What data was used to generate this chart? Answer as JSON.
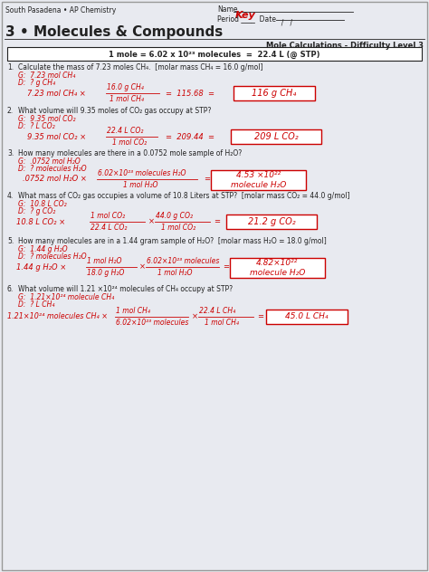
{
  "bg_color": "#e8eaf0",
  "white": "#ffffff",
  "red": "#cc0000",
  "black": "#222222",
  "header_school": "South Pasadena • AP Chemistry",
  "header_name_label": "Name",
  "header_name_value": "Key",
  "header_period_date": "Period ____  Date",
  "header_date_val": "  /   /",
  "chapter_title": "3 • Molecules & Compounds",
  "subtitle": "Mole Calculations - Difficulty Level 3",
  "formula_box": "1 mole = 6.02 x 10²³ molecules  =  22.4 L (@ STP)",
  "q1_text": "Calculate the mass of 7.23 moles CH₄.  [molar mass CH₄ = 16.0 g/mol]",
  "q1_given": "G:  7.23 mol CH₄",
  "q1_det": "D:  ? g CH₄",
  "q1_start": "7.23 mol CH₄ ×",
  "q1_fn": "16.0 g CH₄",
  "q1_fd": "1 mol CH₄",
  "q1_mid": "=  115.68  =",
  "q1_ans": "116 g CH₄",
  "q2_text": "What volume will 9.35 moles of CO₂ gas occupy at STP?",
  "q2_given": "G:  9.35 mol CO₂",
  "q2_det": "D:  ? L CO₂",
  "q2_start": "9.35 mol CO₂ ×",
  "q2_fn": "22.4 L CO₂",
  "q2_fd": "1 mol CO₂",
  "q2_mid": "=  209.44  =",
  "q2_ans": "209 L CO₂",
  "q3_text": "How many molecules are there in a 0.0752 mole sample of H₂O?",
  "q3_given": "G:  .0752 mol H₂O",
  "q3_det": "D:  ? molecules H₂O",
  "q3_start": ".0752 mol H₂O ×",
  "q3_fn": "6.02×10²³ molecules H₂O",
  "q3_fd": "1 mol H₂O",
  "q3_mid": "=",
  "q3_ans": "4.53 ×10²²\nmolecule H₂O",
  "q4_text": "What mass of CO₂ gas occupies a volume of 10.8 Liters at STP?  [molar mass CO₂ = 44.0 g/mol]",
  "q4_given": "G:  10.8 L CO₂",
  "q4_det": "D:  ? g CO₂",
  "q4_start": "10.8 L CO₂ ×",
  "q4_fn1": "1 mol CO₂",
  "q4_fd1": "22.4 L CO₂",
  "q4_fn2": "44.0 g CO₂",
  "q4_fd2": "1 mol CO₂",
  "q4_mid": "=",
  "q4_ans": "21.2 g CO₂",
  "q5_text": "How many molecules are in a 1.44 gram sample of H₂O?  [molar mass H₂O = 18.0 g/mol]",
  "q5_given": "G:  1.44 g H₂O",
  "q5_det": "D:  ? molecules H₂O",
  "q5_start": "1.44 g H₂O ×",
  "q5_fn1": "1 mol H₂O",
  "q5_fd1": "18.0 g H₂O",
  "q5_fn2": "6.02×10²³ molecules",
  "q5_fd2": "1 mol H₂O",
  "q5_mid": "=",
  "q5_ans": "4.82×10²²\nmolecule H₂O",
  "q6_text": "What volume will 1.21 ×10²⁴ molecules of CH₄ occupy at STP?",
  "q6_given": "G:  1.21×10²⁴ molecule CH₄",
  "q6_det": "D:  ? L CH₄",
  "q6_start": "1.21×10²⁴ molecules CH₄ ×",
  "q6_fn1": "1 mol CH₄",
  "q6_fd1": "6.02×10²³ molecules",
  "q6_fn2": "22.4 L CH₄",
  "q6_fd2": "1 mol CH₄",
  "q6_mid": "=",
  "q6_ans": "45.0 L CH₄"
}
